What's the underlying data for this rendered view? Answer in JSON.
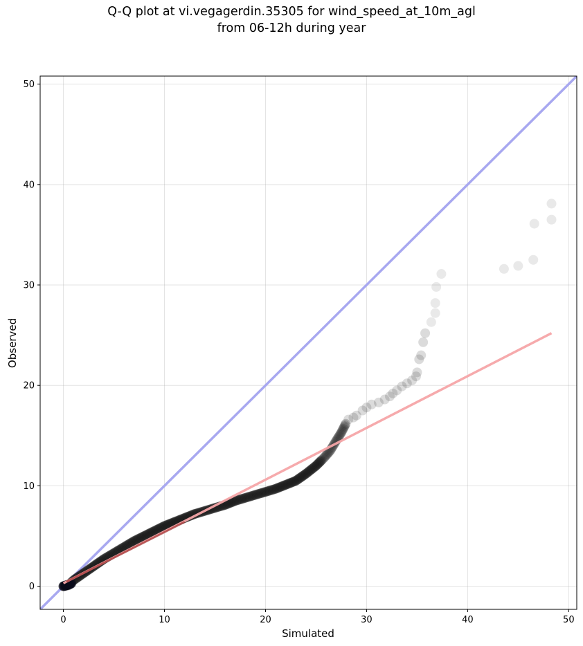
{
  "chart_data": {
    "type": "scatter",
    "title": "Q-Q plot at vi.vegagerdin.35305 for wind_speed_at_10m_agl",
    "subtitle": "from 06-12h during year",
    "xlabel": "Simulated",
    "ylabel": "Observed",
    "xlim": [
      -2.3,
      50.8
    ],
    "ylim": [
      -2.3,
      50.8
    ],
    "xticks": [
      "0",
      "10",
      "20",
      "30",
      "40",
      "50"
    ],
    "yticks": [
      "0",
      "10",
      "20",
      "30",
      "40",
      "50"
    ],
    "grid": true,
    "identity_line": {
      "color": "#a8a8f0",
      "from": [
        -2.3,
        -2.3
      ],
      "to": [
        50.8,
        50.8
      ]
    },
    "fit_line": {
      "color": "#f5a5a8",
      "from": [
        0.0,
        0.3
      ],
      "to": [
        48.3,
        25.2
      ]
    },
    "curve_points": [
      [
        0.0,
        0.0
      ],
      [
        0.5,
        0.1
      ],
      [
        1.0,
        0.6
      ],
      [
        2.0,
        1.3
      ],
      [
        3.0,
        2.0
      ],
      [
        4.0,
        2.7
      ],
      [
        5.0,
        3.3
      ],
      [
        6.0,
        3.9
      ],
      [
        7.0,
        4.5
      ],
      [
        8.0,
        5.0
      ],
      [
        9.0,
        5.5
      ],
      [
        10.0,
        6.0
      ],
      [
        11.0,
        6.4
      ],
      [
        12.0,
        6.8
      ],
      [
        13.0,
        7.2
      ],
      [
        14.0,
        7.5
      ],
      [
        15.0,
        7.8
      ],
      [
        16.0,
        8.1
      ],
      [
        17.0,
        8.5
      ],
      [
        18.0,
        8.8
      ],
      [
        19.0,
        9.1
      ],
      [
        20.0,
        9.4
      ],
      [
        21.0,
        9.7
      ],
      [
        22.0,
        10.1
      ],
      [
        23.0,
        10.5
      ],
      [
        24.0,
        11.2
      ],
      [
        25.0,
        12.0
      ],
      [
        25.8,
        12.8
      ],
      [
        26.4,
        13.5
      ],
      [
        27.0,
        14.5
      ],
      [
        27.5,
        15.3
      ],
      [
        28.0,
        16.3
      ]
    ],
    "sparse_points": [
      [
        28.2,
        16.6
      ],
      [
        28.7,
        16.8
      ],
      [
        29.0,
        17.0
      ],
      [
        29.6,
        17.5
      ],
      [
        30.0,
        17.8
      ],
      [
        30.5,
        18.1
      ],
      [
        31.2,
        18.3
      ],
      [
        31.8,
        18.6
      ],
      [
        32.3,
        18.9
      ],
      [
        32.6,
        19.2
      ],
      [
        33.0,
        19.5
      ],
      [
        33.5,
        19.9
      ],
      [
        34.0,
        20.2
      ],
      [
        34.5,
        20.5
      ],
      [
        34.9,
        20.9
      ],
      [
        35.0,
        21.3
      ],
      [
        35.2,
        22.6
      ],
      [
        35.4,
        23.0
      ],
      [
        35.6,
        24.3
      ],
      [
        35.8,
        25.2
      ],
      [
        36.4,
        26.3
      ],
      [
        36.8,
        27.2
      ],
      [
        36.8,
        28.2
      ],
      [
        36.9,
        29.8
      ],
      [
        37.4,
        31.1
      ],
      [
        43.6,
        31.6
      ],
      [
        45.0,
        31.9
      ],
      [
        46.5,
        32.5
      ],
      [
        46.6,
        36.1
      ],
      [
        48.3,
        36.5
      ],
      [
        48.3,
        38.1
      ]
    ]
  }
}
